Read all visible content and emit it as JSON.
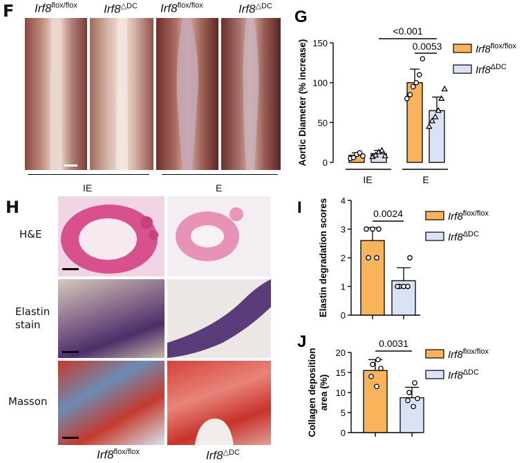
{
  "panel_f": {
    "letter": "F",
    "headers": [
      {
        "italic": "Irf8",
        "sup": "flox/flox"
      },
      {
        "italic": "Irf8",
        "sup": "△DC"
      },
      {
        "italic": "Irf8",
        "sup": "flox/flox"
      },
      {
        "italic": "Irf8",
        "sup": "△DC"
      }
    ],
    "groups": [
      "IE",
      "E"
    ]
  },
  "panel_h": {
    "letter": "H",
    "row_labels": [
      "H&E",
      "Elastin\nstain",
      "Masson"
    ],
    "col_labels": [
      {
        "italic": "Irf8",
        "sup": "flox/flox"
      },
      {
        "italic": "Irf8",
        "sup": "△DC"
      }
    ]
  },
  "colors": {
    "orange": "#F9B35B",
    "blue": "#DAE3F5",
    "stroke": "#000000"
  },
  "chart_data": [
    {
      "id": "G",
      "type": "bar",
      "letter": "G",
      "ylabel": "Aortic Diameter (% increase)",
      "ylim": [
        0,
        150
      ],
      "yticks": [
        0,
        50,
        100,
        150
      ],
      "categories": [
        "IE",
        "E"
      ],
      "legend": [
        {
          "italic": "Irf8",
          "sup": "flox/flox"
        },
        {
          "italic": "Irf8",
          "sup": "ΔDC"
        }
      ],
      "series": [
        {
          "values": [
            9,
            100
          ],
          "err": [
            3,
            17
          ],
          "points": [
            [
              5,
              6,
              10,
              12,
              8
            ],
            [
              80,
              85,
              95,
              100,
              110,
              130
            ]
          ]
        },
        {
          "values": [
            11,
            65
          ],
          "err": [
            4,
            17
          ],
          "points": [
            [
              7,
              9,
              13,
              15,
              8
            ],
            [
              45,
              52,
              57,
              65,
              80,
              92
            ]
          ]
        }
      ],
      "significance": [
        {
          "text": "<0.001",
          "from": [
            0,
            1
          ],
          "to": [
            1,
            1
          ]
        },
        {
          "text": "0.0053",
          "from": [
            1,
            0
          ],
          "to": [
            1,
            1
          ]
        }
      ]
    },
    {
      "id": "I",
      "type": "bar",
      "letter": "I",
      "ylabel": "Elastin degradation scores",
      "ylim": [
        0,
        4
      ],
      "yticks": [
        0,
        1,
        2,
        3,
        4
      ],
      "categories": [
        "",
        ""
      ],
      "legend": [
        {
          "italic": "Irf8",
          "sup": "flox/flox"
        },
        {
          "italic": "Irf8",
          "sup": "ΔDC"
        }
      ],
      "values": [
        2.6,
        1.2
      ],
      "err": [
        0.45,
        0.45
      ],
      "points": [
        [
          2,
          2,
          3,
          3,
          3
        ],
        [
          1,
          1,
          1,
          1,
          2
        ]
      ],
      "significance": [
        {
          "text": "0.0024"
        }
      ]
    },
    {
      "id": "J",
      "type": "bar",
      "letter": "J",
      "ylabel": "Collagen deposition\narea (%)",
      "ylim": [
        0,
        20
      ],
      "yticks": [
        0,
        5,
        10,
        15,
        20
      ],
      "categories": [
        "",
        ""
      ],
      "legend": [
        {
          "italic": "Irf8",
          "sup": "flox/flox"
        },
        {
          "italic": "Irf8",
          "sup": "ΔDC"
        }
      ],
      "values": [
        15.5,
        8.7
      ],
      "err": [
        2.7,
        2.6
      ],
      "points": [
        [
          11.5,
          14,
          16,
          17,
          18.2
        ],
        [
          6.5,
          8,
          8.5,
          10,
          12.4
        ]
      ],
      "significance": [
        {
          "text": "0.0031"
        }
      ]
    }
  ]
}
